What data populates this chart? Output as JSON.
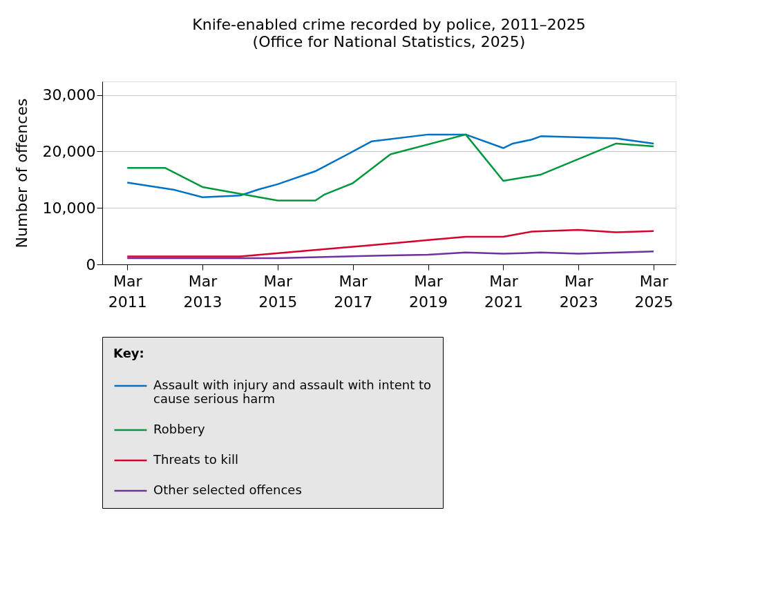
{
  "chart_data": {
    "type": "line",
    "title": "Knife-enabled crime recorded by police, 2011–2025",
    "subtitle": "(Office for National Statistics, 2025)",
    "ylabel": "Number of offences",
    "legend_title": "Key:",
    "series": [
      {
        "name": "Assault with injury and assault with intent to cause serious harm",
        "color": "#0072c6",
        "x": [
          "2011-03",
          "2012-06",
          "2013-03",
          "2014-03",
          "2014-09",
          "2015-03",
          "2016-03",
          "2017-03",
          "2017-09",
          "2019-03",
          "2020-03",
          "2021-03",
          "2021-06",
          "2021-12",
          "2022-03",
          "2024-03",
          "2025-03"
        ],
        "values": [
          14500,
          13200,
          11900,
          12200,
          13300,
          14200,
          16500,
          20000,
          21800,
          23000,
          23000,
          20600,
          21400,
          22100,
          22700,
          22300,
          21400
        ]
      },
      {
        "name": "Robbery",
        "color": "#00983a",
        "x": [
          "2011-03",
          "2012-03",
          "2013-03",
          "2014-03",
          "2015-03",
          "2016-03",
          "2016-06",
          "2017-03",
          "2018-03",
          "2020-03",
          "2021-03",
          "2022-03",
          "2024-03",
          "2025-03"
        ],
        "values": [
          17100,
          17100,
          13700,
          12500,
          11300,
          11300,
          12400,
          14400,
          19500,
          23000,
          14800,
          15900,
          21400,
          20900
        ]
      },
      {
        "name": "Threats to kill",
        "color": "#d6002a",
        "x": [
          "2011-03",
          "2014-03",
          "2018-03",
          "2019-03",
          "2020-03",
          "2021-03",
          "2021-12",
          "2023-03",
          "2024-03",
          "2025-03"
        ],
        "values": [
          1400,
          1400,
          3700,
          4300,
          4900,
          4900,
          5800,
          6100,
          5700,
          5900
        ]
      },
      {
        "name": "Other selected offences",
        "color": "#7030a0",
        "x": [
          "2011-03",
          "2015-03",
          "2018-03",
          "2019-03",
          "2020-03",
          "2021-03",
          "2022-03",
          "2023-03",
          "2025-03"
        ],
        "values": [
          1100,
          1100,
          1600,
          1700,
          2100,
          1900,
          2100,
          1900,
          2300
        ]
      }
    ],
    "xlim": [
      "2010-07",
      "2025-10"
    ],
    "xticks": [
      {
        "value": "2011-03",
        "label": "Mar 2011"
      },
      {
        "value": "2013-03",
        "label": "Mar 2013"
      },
      {
        "value": "2015-03",
        "label": "Mar 2015"
      },
      {
        "value": "2017-03",
        "label": "Mar 2017"
      },
      {
        "value": "2019-03",
        "label": "Mar 2019"
      },
      {
        "value": "2021-03",
        "label": "Mar 2021"
      },
      {
        "value": "2023-03",
        "label": "Mar 2023"
      },
      {
        "value": "2025-03",
        "label": "Mar 2025"
      }
    ],
    "ylim": [
      0,
      32400
    ],
    "yticks": [
      {
        "value": 0,
        "label": "0"
      },
      {
        "value": 10000,
        "label": "10,000"
      },
      {
        "value": 20000,
        "label": "20,000"
      },
      {
        "value": 30000,
        "label": "30,000"
      }
    ],
    "grid": "y",
    "legend": "bottom",
    "marker": "none",
    "line_style": "solid"
  }
}
